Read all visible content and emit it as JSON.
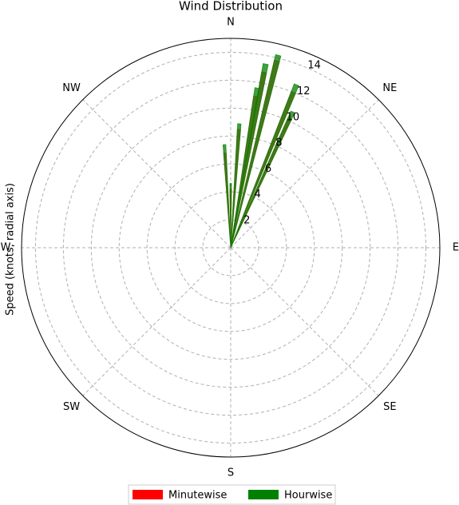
{
  "chart_data": {
    "type": "polar-bar",
    "title": "Wind Distribution",
    "y_label": "Speed (knots, radial axis)",
    "x": [
      -3.5,
      0,
      4,
      9.4,
      10.8,
      13.9,
      22,
      24.6
    ],
    "series": [
      {
        "name": "Minutewise",
        "color": "#ff0000",
        "values": [
          6.8,
          4.2,
          8.5,
          11.0,
          12.8,
          13.8,
          12.0,
          10.2
        ]
      },
      {
        "name": "Hourwise",
        "color": "#008000",
        "values": [
          7.4,
          4.6,
          8.9,
          11.6,
          13.4,
          14.2,
          12.6,
          10.7
        ]
      }
    ],
    "ylim": [
      0,
      15
    ],
    "yticks": [
      2,
      4,
      6,
      8,
      10,
      12,
      14
    ],
    "xticks": [
      {
        "value": 0,
        "label": "N"
      },
      {
        "value": 45,
        "label": "NE"
      },
      {
        "value": 90,
        "label": "E"
      },
      {
        "value": 135,
        "label": "SE"
      },
      {
        "value": 180,
        "label": "S"
      },
      {
        "value": 225,
        "label": "SW"
      },
      {
        "value": 270,
        "label": "W"
      },
      {
        "value": 315,
        "label": "NW"
      }
    ],
    "grid": true,
    "legend": "bottom"
  }
}
